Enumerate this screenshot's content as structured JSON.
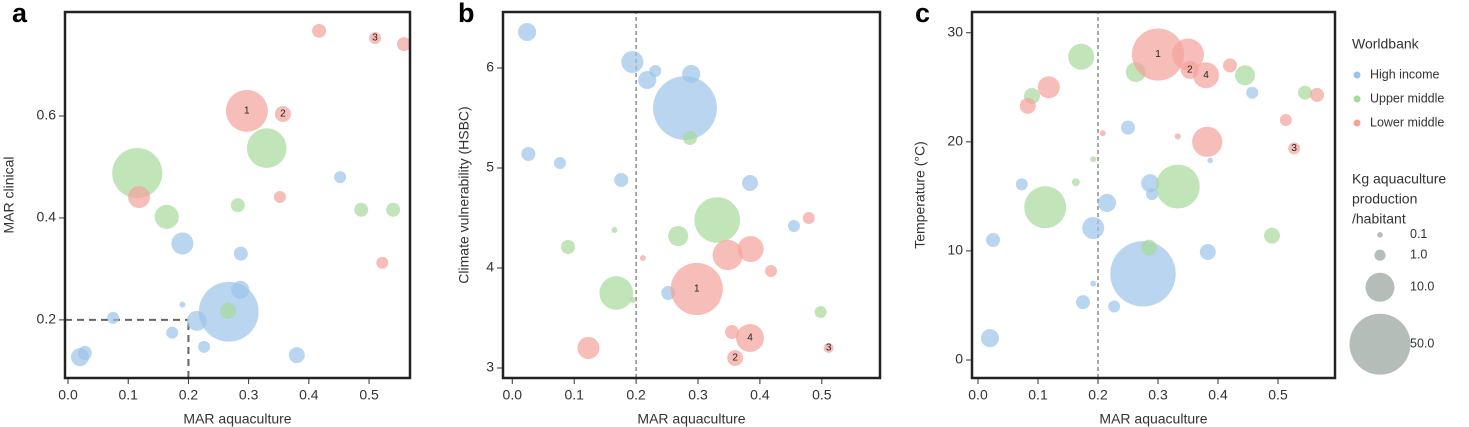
{
  "chart_data": [
    {
      "type": "scatter",
      "panel": "a",
      "xlabel": "MAR aquaculture",
      "ylabel": "MAR clinical",
      "xlim": [
        -0.005,
        0.568
      ],
      "ylim": [
        0.086,
        0.804
      ],
      "xticks": [
        {
          "value": 0,
          "label": "0.0"
        },
        0.1,
        0.2,
        0.3,
        0.4,
        0.5
      ],
      "yticks": [
        0.2,
        0.4,
        0.6
      ],
      "ref_x": 0.2,
      "ref_y": 0.2,
      "series": [
        {
          "color": "#9cc3e8",
          "x": [
            0.02,
            0.028,
            0.075,
            0.173,
            0.19,
            0.214,
            0.226,
            0.19,
            0.287,
            0.286,
            0.267,
            0.38,
            0.452
          ],
          "values": [
            0.127,
            0.135,
            0.204,
            0.175,
            0.23,
            0.198,
            0.147,
            0.35,
            0.33,
            0.259,
            0.216,
            0.131,
            0.48
          ],
          "sizes": [
            3.4,
            1.8,
            1.2,
            1.2,
            0.13,
            4.3,
            1.2,
            5.4,
            1.8,
            3.4,
            48,
            2.5,
            1.2
          ]
        },
        {
          "color": "#a6d99a",
          "x": [
            0.115,
            0.164,
            0.266,
            0.282,
            0.33,
            0.487,
            0.54
          ],
          "values": [
            0.488,
            0.402,
            0.218,
            0.425,
            0.537,
            0.416,
            0.416
          ],
          "sizes": [
            33,
            6.6,
            2.5,
            1.8,
            20,
            1.8,
            1.8
          ]
        },
        {
          "color": "#f4a29b",
          "x": [
            0.118,
            0.297,
            0.357,
            0.352,
            0.417,
            0.51,
            0.558,
            0.522
          ],
          "values": [
            0.441,
            0.61,
            0.604,
            0.441,
            0.767,
            0.753,
            0.741,
            0.312
          ],
          "sizes": [
            5.4,
            22.6,
            2.5,
            1.2,
            1.8,
            1.2,
            1.8,
            1.2
          ]
        }
      ],
      "annotations": [
        {
          "text": "1",
          "x": 0.297,
          "y": 0.61
        },
        {
          "text": "2",
          "x": 0.357,
          "y": 0.604
        },
        {
          "text": "3",
          "x": 0.51,
          "y": 0.753
        }
      ]
    },
    {
      "type": "scatter",
      "panel": "b",
      "xlabel": "MAR aquaculture",
      "ylabel": "Climate vulnerability (HSBC)",
      "xlim": [
        -0.015,
        0.594
      ],
      "ylim": [
        2.9,
        6.56
      ],
      "xticks": [
        {
          "value": 0,
          "label": "0.0"
        },
        0.1,
        0.2,
        0.3,
        0.4,
        0.5
      ],
      "yticks": [
        3,
        4,
        5,
        6
      ],
      "ref_x": 0.2,
      "series": [
        {
          "color": "#9cc3e8",
          "x": [
            0.024,
            0.026,
            0.077,
            0.176,
            0.194,
            0.218,
            0.231,
            0.289,
            0.279,
            0.252,
            0.384,
            0.455
          ],
          "values": [
            6.36,
            5.14,
            5.05,
            4.88,
            6.06,
            5.88,
            5.97,
            5.94,
            5.6,
            3.75,
            4.85,
            4.42
          ],
          "sizes": [
            3.4,
            1.8,
            1.2,
            1.8,
            5.4,
            3.4,
            1.2,
            3.4,
            55,
            1.8,
            2.5,
            1.2
          ]
        },
        {
          "color": "#a6d99a",
          "x": [
            0.09,
            0.165,
            0.168,
            0.195,
            0.268,
            0.287,
            0.331,
            0.498
          ],
          "values": [
            4.21,
            4.38,
            3.75,
            3.68,
            4.32,
            5.3,
            4.48,
            3.56
          ],
          "sizes": [
            1.8,
            0.13,
            14,
            0.13,
            4.3,
            1.8,
            27,
            1.2
          ]
        },
        {
          "color": "#f4a29b",
          "x": [
            0.123,
            0.211,
            0.298,
            0.348,
            0.385,
            0.355,
            0.36,
            0.384,
            0.418,
            0.511,
            0.479
          ],
          "values": [
            3.2,
            4.1,
            3.79,
            4.13,
            4.19,
            3.36,
            3.1,
            3.3,
            3.97,
            3.2,
            4.5
          ],
          "sizes": [
            5.4,
            0.13,
            36,
            11,
            7.9,
            1.8,
            2.5,
            9.3,
            1.2,
            0.73,
            1.2
          ]
        }
      ],
      "annotations": [
        {
          "text": "1",
          "x": 0.298,
          "y": 3.79
        },
        {
          "text": "2",
          "x": 0.36,
          "y": 3.1
        },
        {
          "text": "3",
          "x": 0.511,
          "y": 3.2
        },
        {
          "text": "4",
          "x": 0.384,
          "y": 3.3
        }
      ]
    },
    {
      "type": "scatter",
      "panel": "c",
      "xlabel": "MAR aquaculture",
      "ylabel": "Temperature (°C)",
      "xlim": [
        -0.01,
        0.595
      ],
      "ylim": [
        -1.65,
        31.9
      ],
      "xticks": [
        {
          "value": 0,
          "label": "0.0"
        },
        0.1,
        0.2,
        0.3,
        0.4,
        0.5
      ],
      "yticks": [
        0,
        10,
        20,
        30
      ],
      "ref_x": 0.2,
      "legend_title": "Worldbank",
      "size_title": [
        "Kg aquaculture",
        "production",
        "/habitant"
      ],
      "size_legend": [
        0.1,
        {
          "value": 1,
          "label": "1.0"
        },
        {
          "value": 10,
          "label": "10.0"
        },
        {
          "value": 50,
          "label": "50.0"
        }
      ],
      "series": [
        {
          "name": "High income",
          "color": "#9cc3e8",
          "x": [
            0.02,
            0.025,
            0.073,
            0.175,
            0.192,
            0.192,
            0.215,
            0.227,
            0.25,
            0.287,
            0.29,
            0.275,
            0.383,
            0.387,
            0.457
          ],
          "values": [
            2.0,
            11.0,
            16.1,
            5.3,
            7.0,
            12.1,
            14.4,
            4.9,
            21.3,
            16.2,
            15.2,
            7.9,
            9.9,
            18.3,
            24.5
          ],
          "sizes": [
            3.4,
            1.8,
            1.2,
            1.8,
            0.13,
            5.4,
            3.4,
            1.2,
            1.8,
            3.4,
            1.2,
            58,
            2.5,
            0.1,
            1.2
          ]
        },
        {
          "name": "Upper middle",
          "color": "#a6d99a",
          "x": [
            0.09,
            0.112,
            0.163,
            0.192,
            0.172,
            0.263,
            0.285,
            0.333,
            0.445,
            0.49,
            0.545
          ],
          "values": [
            24.2,
            14.0,
            16.3,
            18.4,
            27.8,
            26.4,
            10.3,
            15.9,
            26.1,
            11.4,
            24.5
          ],
          "sizes": [
            2.5,
            22.6,
            0.37,
            0.13,
            7.9,
            4.3,
            2.5,
            24.9,
            4.3,
            2.5,
            1.8
          ]
        },
        {
          "name": "Lower middle",
          "color": "#f4a29b",
          "x": [
            0.083,
            0.118,
            0.208,
            0.3,
            0.35,
            0.353,
            0.38,
            0.333,
            0.382,
            0.42,
            0.513,
            0.527,
            0.565
          ],
          "values": [
            23.3,
            25.0,
            20.8,
            28.0,
            28.0,
            26.6,
            26.1,
            20.5,
            20.0,
            27.0,
            22.0,
            19.4,
            24.3
          ],
          "sizes": [
            2.5,
            5.4,
            0.13,
            36,
            12.5,
            3.4,
            7.9,
            0.13,
            11,
            1.8,
            1.2,
            1.2,
            1.8
          ]
        }
      ],
      "annotations": [
        {
          "text": "1",
          "x": 0.3,
          "y": 28.0
        },
        {
          "text": "2",
          "x": 0.353,
          "y": 26.6
        },
        {
          "text": "3",
          "x": 0.527,
          "y": 19.4
        },
        {
          "text": "4",
          "x": 0.38,
          "y": 26.1
        }
      ]
    }
  ]
}
